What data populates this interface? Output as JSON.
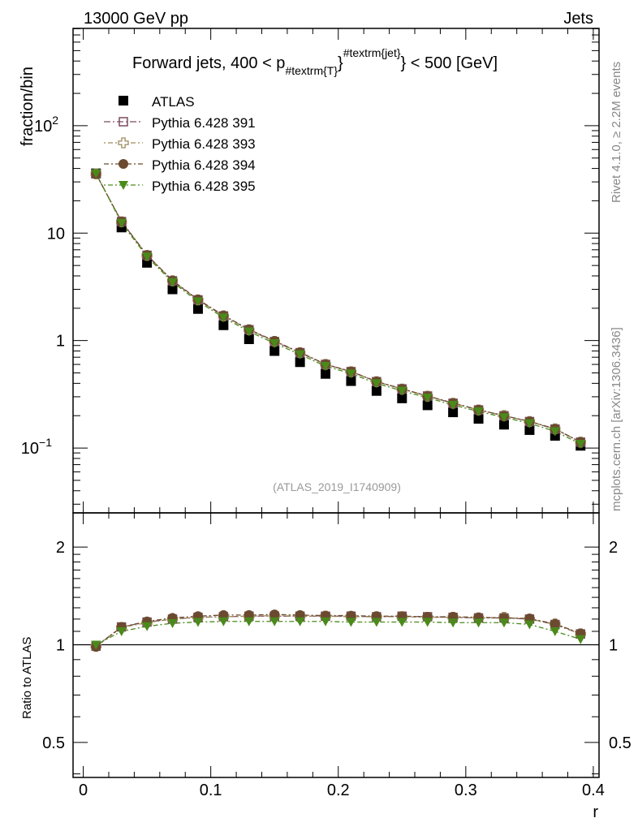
{
  "chart_data": {
    "type": "scatter",
    "header_left": "13000 GeV pp",
    "header_right": "Jets",
    "title": {
      "main": "Forward jets, 400 < p",
      "sub": "#textrm{T}",
      "sup": "#textrm{jet}",
      "tail": "} < 500 [GeV]"
    },
    "analysis_label": "(ATLAS_2019_I1740909)",
    "side_label_top": "Rivet 4.1.0, ≥ 2.2M events",
    "side_label_bottom": "mcplots.cern.ch [arXiv:1306.3436]",
    "ylabel": "fraction/bin",
    "ratio_ylabel": "Ratio to ATLAS",
    "xlabel": "r",
    "xlim": [
      -0.008,
      0.4045
    ],
    "ylim": [
      0.0249,
      805
    ],
    "yscale": "log",
    "ratio_ylim": [
      0.39,
      2.55
    ],
    "ratio_yscale": "log",
    "x_ticks": [
      "0",
      "0.1",
      "0.2",
      "0.3",
      "0.4"
    ],
    "x_tick_values": [
      0,
      0.1,
      0.2,
      0.3,
      0.4
    ],
    "y_ticks": [
      {
        "value": 100,
        "base": "10",
        "exp": "2"
      },
      {
        "value": 10,
        "base": "10",
        "exp": ""
      },
      {
        "value": 1,
        "base": "1",
        "exp": ""
      },
      {
        "value": 0.1,
        "base": "10",
        "exp": "−1"
      }
    ],
    "ratio_ticks": [
      {
        "value": 0.5,
        "label": "0.5"
      },
      {
        "value": 1,
        "label": "1"
      },
      {
        "value": 2,
        "label": "2"
      }
    ],
    "x": [
      0.01,
      0.03,
      0.05,
      0.07,
      0.09,
      0.11,
      0.13,
      0.15,
      0.17,
      0.19,
      0.21,
      0.23,
      0.25,
      0.27,
      0.29,
      0.31,
      0.33,
      0.35,
      0.37,
      0.39
    ],
    "data": {
      "name": "ATLAS",
      "color": "#000000",
      "values": [
        36,
        11.3,
        5.3,
        3.0,
        1.97,
        1.39,
        1.03,
        0.8,
        0.63,
        0.49,
        0.42,
        0.34,
        0.29,
        0.25,
        0.215,
        0.187,
        0.165,
        0.147,
        0.13,
        0.105
      ]
    },
    "series": [
      {
        "name": "Pythia 6.428 391",
        "color": "#7a4a5e",
        "marker": "open-square",
        "dash": "8,3,2,3",
        "ratio": [
          0.99,
          1.135,
          1.175,
          1.2,
          1.215,
          1.22,
          1.225,
          1.225,
          1.225,
          1.225,
          1.225,
          1.22,
          1.225,
          1.22,
          1.215,
          1.21,
          1.21,
          1.2,
          1.155,
          1.08
        ]
      },
      {
        "name": "Pythia 6.428 393",
        "color": "#9a8a5a",
        "marker": "open-cross",
        "dash": "2,3,6,3",
        "ratio": [
          0.99,
          1.13,
          1.17,
          1.2,
          1.215,
          1.22,
          1.225,
          1.23,
          1.225,
          1.225,
          1.22,
          1.22,
          1.22,
          1.215,
          1.215,
          1.21,
          1.215,
          1.2,
          1.16,
          1.08
        ]
      },
      {
        "name": "Pythia 6.428 394",
        "color": "#6b4a2f",
        "marker": "circle",
        "dash": "6,3,2,3",
        "ratio": [
          0.985,
          1.135,
          1.18,
          1.21,
          1.225,
          1.235,
          1.235,
          1.24,
          1.235,
          1.23,
          1.23,
          1.225,
          1.225,
          1.22,
          1.22,
          1.215,
          1.21,
          1.205,
          1.16,
          1.085
        ]
      },
      {
        "name": "Pythia 6.428 395",
        "color": "#4a8a1a",
        "marker": "triangle-down",
        "dash": "2,3,6,3",
        "ratio": [
          1.0,
          1.1,
          1.14,
          1.165,
          1.175,
          1.18,
          1.18,
          1.18,
          1.18,
          1.18,
          1.175,
          1.175,
          1.175,
          1.175,
          1.17,
          1.17,
          1.17,
          1.155,
          1.1,
          1.04
        ]
      }
    ],
    "legend_placement": "top-left"
  }
}
